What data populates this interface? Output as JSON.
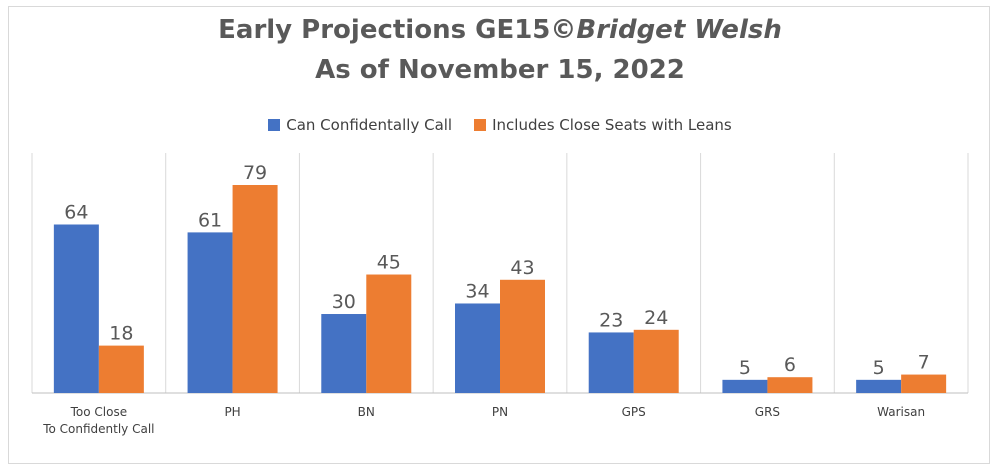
{
  "title": {
    "line1_prefix": "Early Projections GE15©",
    "line1_emph": "Bridget Welsh",
    "line2": "As of November  15, 2022"
  },
  "chart_data": {
    "type": "bar",
    "categories": [
      [
        "Too Close",
        "To Confidently Call"
      ],
      [
        "PH"
      ],
      [
        "BN"
      ],
      [
        "PN"
      ],
      [
        "GPS"
      ],
      [
        "GRS"
      ],
      [
        "Warisan"
      ]
    ],
    "series": [
      {
        "name": "Can Confidentally Call",
        "color": "#4472c4",
        "values": [
          64,
          61,
          30,
          34,
          23,
          5,
          5
        ]
      },
      {
        "name": "Includes Close Seats with Leans",
        "color": "#ed7d31",
        "values": [
          18,
          79,
          45,
          43,
          24,
          6,
          7
        ]
      }
    ],
    "ylim": [
      0,
      80
    ],
    "grid": "vertical separators",
    "legend_position": "top-center",
    "xlabel": "",
    "ylabel": ""
  }
}
